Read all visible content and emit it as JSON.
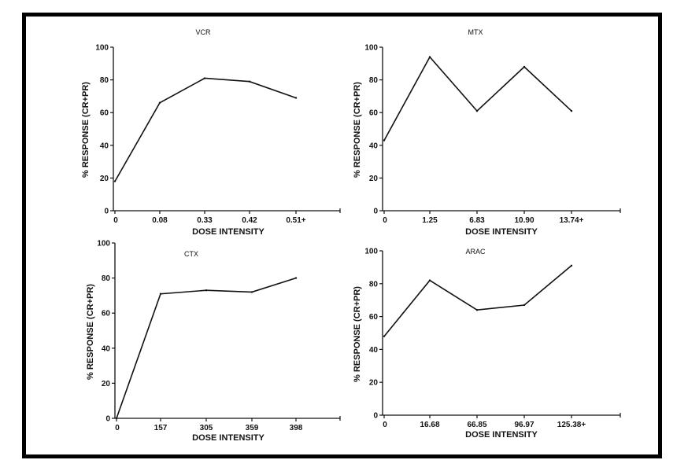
{
  "chart_data": [
    {
      "type": "line",
      "title": "VCR",
      "xlabel": "DOSE INTENSITY",
      "ylabel": "% RESPONSE (CR+PR)",
      "categories": [
        "0",
        "0.08",
        "0.33",
        "0.42",
        "0.51+"
      ],
      "values": [
        18,
        66,
        81,
        79,
        69
      ],
      "ylim": [
        0,
        100
      ],
      "yticks": [
        "0",
        "20",
        "40",
        "60",
        "80",
        "100"
      ],
      "grid": false
    },
    {
      "type": "line",
      "title": "MTX",
      "xlabel": "DOSE INTENSITY",
      "ylabel": "% RESPONSE (CR+PR)",
      "categories": [
        "0",
        "1.25",
        "6.83",
        "10.90",
        "13.74+"
      ],
      "values": [
        43,
        94,
        61,
        88,
        61
      ],
      "ylim": [
        0,
        100
      ],
      "yticks": [
        "0",
        "20",
        "40",
        "60",
        "80",
        "100"
      ],
      "grid": false
    },
    {
      "type": "line",
      "title": "CTX",
      "xlabel": "DOSE INTENSITY",
      "ylabel": "% RESPONSE (CR+PR)",
      "categories": [
        "0",
        "157",
        "305",
        "359",
        "398"
      ],
      "values": [
        0,
        71,
        73,
        72,
        80
      ],
      "ylim": [
        0,
        100
      ],
      "yticks": [
        "0",
        "20",
        "40",
        "60",
        "80",
        "100"
      ],
      "grid": false
    },
    {
      "type": "line",
      "title": "ARAC",
      "xlabel": "DOSE INTENSITY",
      "ylabel": "% RESPONSE (CR+PR)",
      "categories": [
        "0",
        "16.68",
        "66.85",
        "96.97",
        "125.38+"
      ],
      "values": [
        48,
        82,
        64,
        67,
        91
      ],
      "ylim": [
        0,
        100
      ],
      "yticks": [
        "0",
        "20",
        "40",
        "60",
        "80",
        "100"
      ],
      "grid": false
    }
  ]
}
